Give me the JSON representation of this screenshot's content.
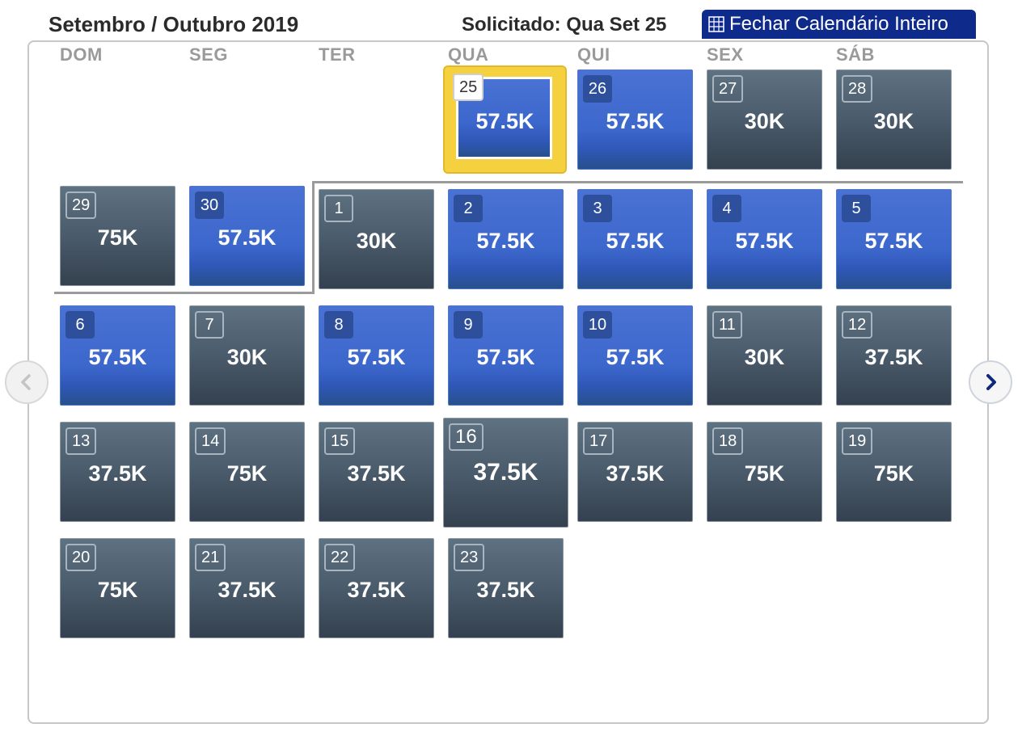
{
  "header": {
    "title": "Setembro / Outubro 2019",
    "requested": "Solicitado: Qua Set 25",
    "close_button": "Fechar Calendário Inteiro"
  },
  "weekdays": [
    "DOM",
    "SEG",
    "TER",
    "QUA",
    "QUI",
    "SEX",
    "SÁB"
  ],
  "colors": {
    "available_blue": "#3c67cc",
    "standard_gray": "#4a5b6b",
    "selected_gold": "#f5d13f",
    "header_button": "#0e2a8a"
  },
  "days": [
    {
      "day": "25",
      "price": "57.5K",
      "style": "selected"
    },
    {
      "day": "26",
      "price": "57.5K",
      "style": "blue"
    },
    {
      "day": "27",
      "price": "30K",
      "style": "gray"
    },
    {
      "day": "28",
      "price": "30K",
      "style": "gray"
    },
    {
      "day": "29",
      "price": "75K",
      "style": "gray"
    },
    {
      "day": "30",
      "price": "57.5K",
      "style": "blue"
    },
    {
      "day": "1",
      "price": "30K",
      "style": "gray"
    },
    {
      "day": "2",
      "price": "57.5K",
      "style": "blue"
    },
    {
      "day": "3",
      "price": "57.5K",
      "style": "blue"
    },
    {
      "day": "4",
      "price": "57.5K",
      "style": "blue"
    },
    {
      "day": "5",
      "price": "57.5K",
      "style": "blue"
    },
    {
      "day": "6",
      "price": "57.5K",
      "style": "blue"
    },
    {
      "day": "7",
      "price": "30K",
      "style": "gray"
    },
    {
      "day": "8",
      "price": "57.5K",
      "style": "blue"
    },
    {
      "day": "9",
      "price": "57.5K",
      "style": "blue"
    },
    {
      "day": "10",
      "price": "57.5K",
      "style": "blue"
    },
    {
      "day": "11",
      "price": "30K",
      "style": "gray"
    },
    {
      "day": "12",
      "price": "37.5K",
      "style": "gray"
    },
    {
      "day": "13",
      "price": "37.5K",
      "style": "gray"
    },
    {
      "day": "14",
      "price": "75K",
      "style": "gray"
    },
    {
      "day": "15",
      "price": "37.5K",
      "style": "gray"
    },
    {
      "day": "16",
      "price": "37.5K",
      "style": "hover"
    },
    {
      "day": "17",
      "price": "37.5K",
      "style": "gray"
    },
    {
      "day": "18",
      "price": "75K",
      "style": "gray"
    },
    {
      "day": "19",
      "price": "75K",
      "style": "gray"
    },
    {
      "day": "20",
      "price": "75K",
      "style": "gray"
    },
    {
      "day": "21",
      "price": "37.5K",
      "style": "gray"
    },
    {
      "day": "22",
      "price": "37.5K",
      "style": "gray"
    },
    {
      "day": "23",
      "price": "37.5K",
      "style": "gray"
    }
  ],
  "nav": {
    "prev_icon": "chevron-left-icon",
    "next_icon": "chevron-right-icon"
  }
}
